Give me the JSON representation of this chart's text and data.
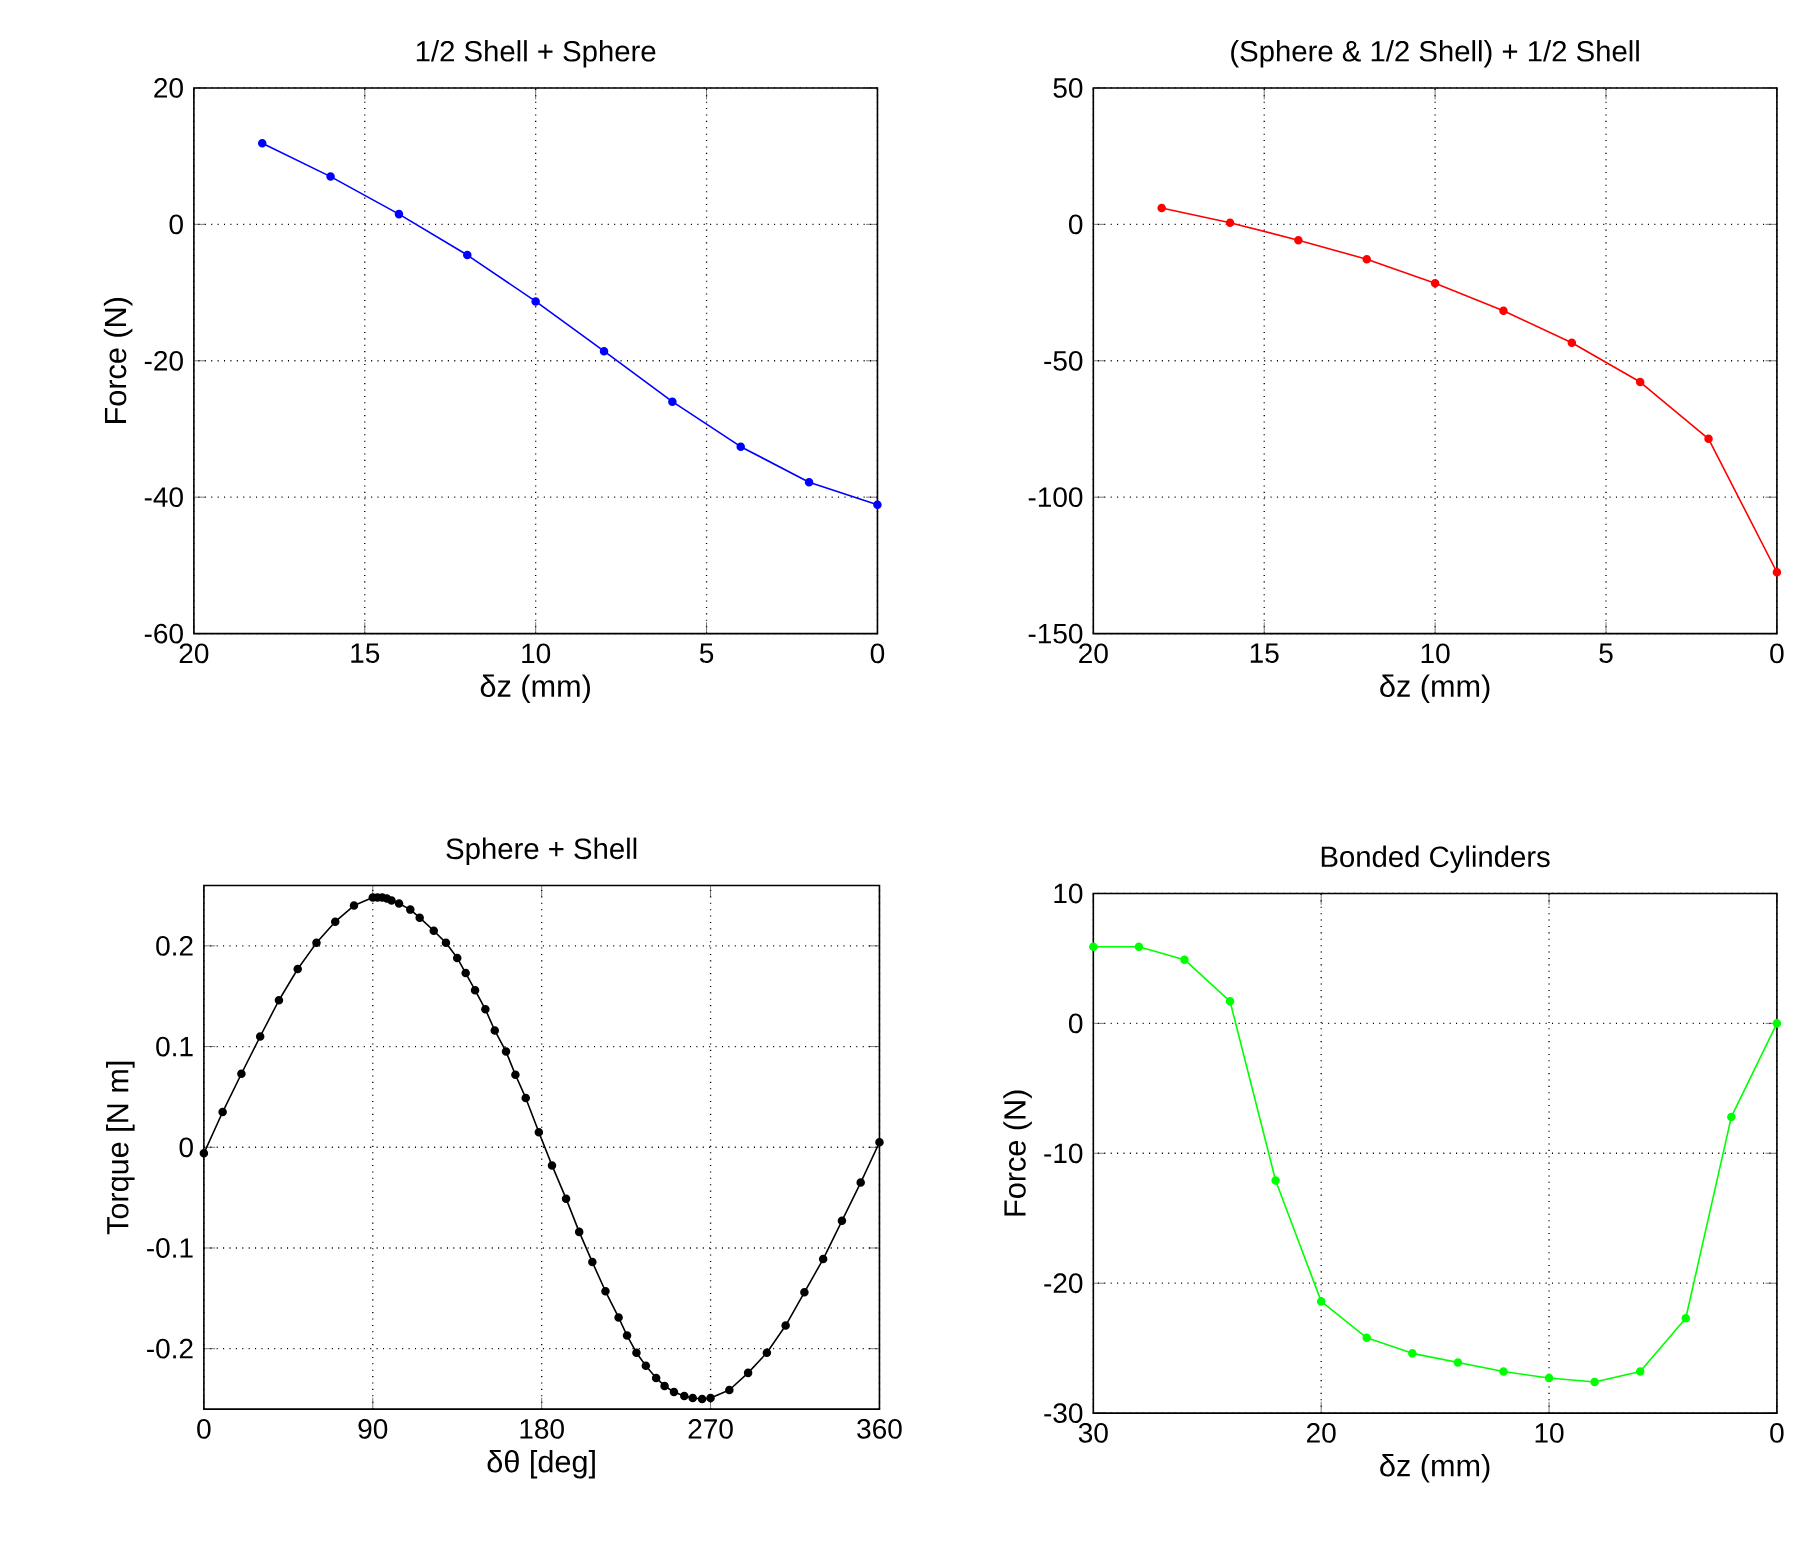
{
  "chart_data": [
    {
      "type": "line",
      "title": "1/2 Shell + Sphere",
      "xlabel": "δz (mm)",
      "ylabel": "Force (N)",
      "xlim": [
        20,
        0
      ],
      "ylim": [
        -60,
        20
      ],
      "xticks": [
        20,
        15,
        10,
        5,
        0
      ],
      "yticks": [
        -60,
        -40,
        -20,
        0,
        20
      ],
      "grid": true,
      "marker": "circle",
      "line_style": "solid",
      "series": [
        {
          "color": "#0000ff",
          "x": [
            18,
            16,
            14,
            12,
            10,
            8,
            6,
            4,
            2,
            0
          ],
          "values": [
            11.9,
            7.0,
            1.5,
            -4.5,
            -11.3,
            -18.6,
            -26.0,
            -32.6,
            -37.8,
            -41.1
          ]
        }
      ]
    },
    {
      "type": "line",
      "title": "(Sphere & 1/2 Shell) + 1/2 Shell",
      "xlabel": "δz (mm)",
      "xlim": [
        20,
        0
      ],
      "ylim": [
        -150,
        50
      ],
      "xticks": [
        20,
        15,
        10,
        5,
        0
      ],
      "yticks": [
        -150,
        -100,
        -50,
        0,
        50
      ],
      "grid": true,
      "marker": "circle",
      "line_style": "solid",
      "series": [
        {
          "color": "#ff0000",
          "x": [
            18,
            16,
            14,
            12,
            10,
            8,
            6,
            4,
            2,
            0
          ],
          "values": [
            6,
            0.6,
            -5.8,
            -12.8,
            -21.6,
            -31.7,
            -43.4,
            -57.8,
            -78.6,
            -127.5
          ]
        }
      ]
    },
    {
      "type": "line",
      "title": "Sphere + Shell",
      "xlabel": "δθ [deg]",
      "ylabel": "Torque [N m]",
      "xlim": [
        0,
        360
      ],
      "ylim": [
        -0.26,
        0.26
      ],
      "xticks": [
        0,
        90,
        180,
        270,
        360
      ],
      "yticks": [
        -0.2,
        -0.1,
        0,
        0.1,
        0.2
      ],
      "grid": true,
      "marker": "circle",
      "line_style": "solid",
      "series": [
        {
          "color": "#000000",
          "x": [
            0,
            10,
            20,
            30,
            40,
            50,
            60,
            70,
            80,
            90,
            92.5,
            95,
            97.5,
            100,
            104,
            110,
            115,
            122.5,
            129,
            135,
            139.5,
            144.5,
            150,
            155,
            161,
            166,
            171.5,
            178.5,
            185.5,
            193,
            200,
            207,
            214,
            221,
            225.5,
            230.5,
            235.5,
            241,
            245.5,
            250.5,
            256,
            260.5,
            265.5,
            270,
            280,
            290,
            300,
            310,
            320,
            330,
            340,
            350,
            360
          ],
          "values": [
            -0.006,
            0.035,
            0.073,
            0.11,
            0.146,
            0.177,
            0.203,
            0.224,
            0.24,
            0.248,
            0.248,
            0.248,
            0.247,
            0.245,
            0.242,
            0.236,
            0.228,
            0.215,
            0.203,
            0.188,
            0.173,
            0.156,
            0.137,
            0.116,
            0.095,
            0.072,
            0.049,
            0.015,
            -0.018,
            -0.051,
            -0.084,
            -0.114,
            -0.143,
            -0.169,
            -0.187,
            -0.204,
            -0.217,
            -0.229,
            -0.237,
            -0.243,
            -0.247,
            -0.249,
            -0.25,
            -0.249,
            -0.241,
            -0.224,
            -0.204,
            -0.177,
            -0.144,
            -0.111,
            -0.073,
            -0.035,
            0.005
          ]
        }
      ]
    },
    {
      "type": "line",
      "title": "Bonded Cylinders",
      "xlabel": "δz (mm)",
      "ylabel": "Force (N)",
      "xlim": [
        30,
        0
      ],
      "ylim": [
        -30,
        10
      ],
      "xticks": [
        30,
        20,
        10,
        0
      ],
      "yticks": [
        -30,
        -20,
        -10,
        0,
        10
      ],
      "grid": true,
      "marker": "circle",
      "line_style": "solid",
      "series": [
        {
          "color": "#00ff00",
          "x": [
            30,
            28,
            26,
            24,
            22,
            20,
            18,
            16,
            14,
            12,
            10,
            8,
            6,
            4,
            2,
            0
          ],
          "values": [
            5.9,
            5.9,
            4.9,
            1.7,
            -12.1,
            -21.4,
            -24.2,
            -25.4,
            -26.1,
            -26.8,
            -27.3,
            -27.6,
            -26.8,
            -22.7,
            -7.2,
            0
          ]
        }
      ]
    }
  ]
}
